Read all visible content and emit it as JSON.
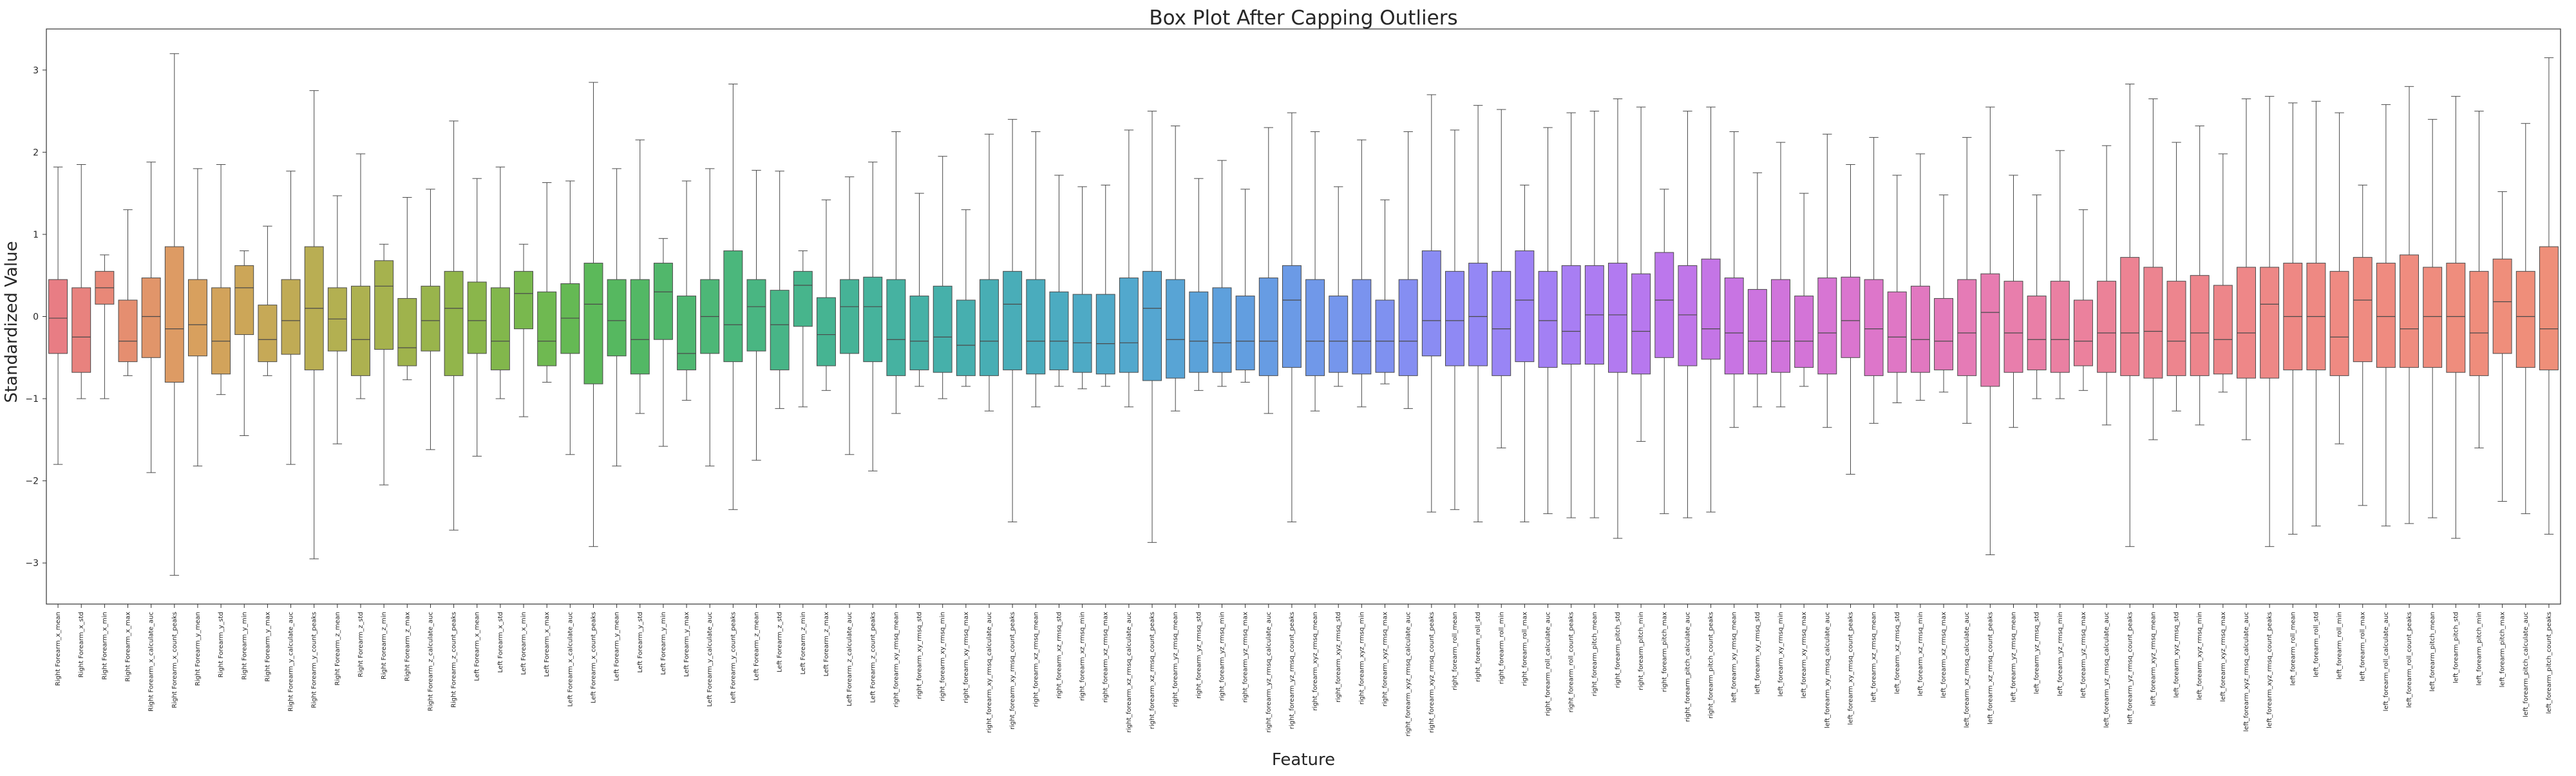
{
  "chart_data": {
    "type": "box",
    "title": "Box Plot After Capping Outliers",
    "xlabel": "Feature",
    "ylabel": "Standardized Value",
    "ylim": [
      -3.5,
      3.5
    ],
    "yticks": [
      -3,
      -2,
      -1,
      0,
      1,
      2,
      3
    ],
    "grid": false,
    "legend": "none",
    "categories": [
      "Right Forearm_x_mean",
      "Right Forearm_x_std",
      "Right Forearm_x_min",
      "Right Forearm_x_max",
      "Right Forearm_x_calculate_auc",
      "Right Forearm_x_count_peaks",
      "Right Forearm_y_mean",
      "Right Forearm_y_std",
      "Right Forearm_y_min",
      "Right Forearm_y_max",
      "Right Forearm_y_calculate_auc",
      "Right Forearm_y_count_peaks",
      "Right Forearm_z_mean",
      "Right Forearm_z_std",
      "Right Forearm_z_min",
      "Right Forearm_z_max",
      "Right Forearm_z_calculate_auc",
      "Right Forearm_z_count_peaks",
      "Left Forearm_x_mean",
      "Left Forearm_x_std",
      "Left Forearm_x_min",
      "Left Forearm_x_max",
      "Left Forearm_x_calculate_auc",
      "Left Forearm_x_count_peaks",
      "Left Forearm_y_mean",
      "Left Forearm_y_std",
      "Left Forearm_y_min",
      "Left Forearm_y_max",
      "Left Forearm_y_calculate_auc",
      "Left Forearm_y_count_peaks",
      "Left Forearm_z_mean",
      "Left Forearm_z_std",
      "Left Forearm_z_min",
      "Left Forearm_z_max",
      "Left Forearm_z_calculate_auc",
      "Left Forearm_z_count_peaks",
      "right_forearm_xy_rmsq_mean",
      "right_forearm_xy_rmsq_std",
      "right_forearm_xy_rmsq_min",
      "right_forearm_xy_rmsq_max",
      "right_forearm_xy_rmsq_calculate_auc",
      "right_forearm_xy_rmsq_count_peaks",
      "right_forearm_xz_rmsq_mean",
      "right_forearm_xz_rmsq_std",
      "right_forearm_xz_rmsq_min",
      "right_forearm_xz_rmsq_max",
      "right_forearm_xz_rmsq_calculate_auc",
      "right_forearm_xz_rmsq_count_peaks",
      "right_forearm_yz_rmsq_mean",
      "right_forearm_yz_rmsq_std",
      "right_forearm_yz_rmsq_min",
      "right_forearm_yz_rmsq_max",
      "right_forearm_yz_rmsq_calculate_auc",
      "right_forearm_yz_rmsq_count_peaks",
      "right_forearm_xyz_rmsq_mean",
      "right_forearm_xyz_rmsq_std",
      "right_forearm_xyz_rmsq_min",
      "right_forearm_xyz_rmsq_max",
      "right_forearm_xyz_rmsq_calculate_auc",
      "right_forearm_xyz_rmsq_count_peaks",
      "right_forearm_roll_mean",
      "right_forearm_roll_std",
      "right_forearm_roll_min",
      "right_forearm_roll_max",
      "right_forearm_roll_calculate_auc",
      "right_forearm_roll_count_peaks",
      "right_forearm_pitch_mean",
      "right_forearm_pitch_std",
      "right_forearm_pitch_min",
      "right_forearm_pitch_max",
      "right_forearm_pitch_calculate_auc",
      "right_forearm_pitch_count_peaks",
      "left_forearm_xy_rmsq_mean",
      "left_forearm_xy_rmsq_std",
      "left_forearm_xy_rmsq_min",
      "left_forearm_xy_rmsq_max",
      "left_forearm_xy_rmsq_calculate_auc",
      "left_forearm_xy_rmsq_count_peaks",
      "left_forearm_xz_rmsq_mean",
      "left_forearm_xz_rmsq_std",
      "left_forearm_xz_rmsq_min",
      "left_forearm_xz_rmsq_max",
      "left_forearm_xz_rmsq_calculate_auc",
      "left_forearm_xz_rmsq_count_peaks",
      "left_forearm_yz_rmsq_mean",
      "left_forearm_yz_rmsq_std",
      "left_forearm_yz_rmsq_min",
      "left_forearm_yz_rmsq_max",
      "left_forearm_yz_rmsq_calculate_auc",
      "left_forearm_yz_rmsq_count_peaks",
      "left_forearm_xyz_rmsq_mean",
      "left_forearm_xyz_rmsq_std",
      "left_forearm_xyz_rmsq_min",
      "left_forearm_xyz_rmsq_max",
      "left_forearm_xyz_rmsq_calculate_auc",
      "left_forearm_xyz_rmsq_count_peaks",
      "left_forearm_roll_mean",
      "left_forearm_roll_std",
      "left_forearm_roll_min",
      "left_forearm_roll_max",
      "left_forearm_roll_calculate_auc",
      "left_forearm_roll_count_peaks",
      "left_forearm_pitch_mean",
      "left_forearm_pitch_std",
      "left_forearm_pitch_min",
      "left_forearm_pitch_max",
      "left_forearm_pitch_calculate_auc",
      "left_forearm_pitch_count_peaks"
    ],
    "boxes": [
      [
        -1.8,
        -0.45,
        -0.02,
        0.45,
        1.82
      ],
      [
        -1.0,
        -0.68,
        -0.25,
        0.35,
        1.85
      ],
      [
        -1.0,
        0.15,
        0.35,
        0.55,
        0.75
      ],
      [
        -0.72,
        -0.55,
        -0.3,
        0.2,
        1.3
      ],
      [
        -1.9,
        -0.5,
        0.0,
        0.47,
        1.88
      ],
      [
        -3.15,
        -0.8,
        -0.15,
        0.85,
        3.2
      ],
      [
        -1.82,
        -0.48,
        -0.1,
        0.45,
        1.8
      ],
      [
        -0.95,
        -0.7,
        -0.3,
        0.35,
        1.85
      ],
      [
        -1.45,
        -0.22,
        0.35,
        0.62,
        0.8
      ],
      [
        -0.72,
        -0.55,
        -0.28,
        0.14,
        1.1
      ],
      [
        -1.8,
        -0.46,
        -0.05,
        0.45,
        1.77
      ],
      [
        -2.95,
        -0.65,
        0.1,
        0.85,
        2.75
      ],
      [
        -1.55,
        -0.42,
        -0.03,
        0.35,
        1.47
      ],
      [
        -1.0,
        -0.72,
        -0.28,
        0.37,
        1.98
      ],
      [
        -2.05,
        -0.4,
        0.37,
        0.68,
        0.88
      ],
      [
        -0.77,
        -0.6,
        -0.38,
        0.22,
        1.45
      ],
      [
        -1.62,
        -0.42,
        -0.05,
        0.37,
        1.55
      ],
      [
        -2.6,
        -0.72,
        0.1,
        0.55,
        2.38
      ],
      [
        -1.7,
        -0.45,
        -0.05,
        0.42,
        1.68
      ],
      [
        -1.0,
        -0.65,
        -0.3,
        0.35,
        1.82
      ],
      [
        -1.22,
        -0.15,
        0.28,
        0.55,
        0.88
      ],
      [
        -0.8,
        -0.6,
        -0.3,
        0.3,
        1.63
      ],
      [
        -1.68,
        -0.45,
        -0.02,
        0.4,
        1.65
      ],
      [
        -2.8,
        -0.82,
        0.15,
        0.65,
        2.85
      ],
      [
        -1.82,
        -0.48,
        -0.05,
        0.45,
        1.8
      ],
      [
        -1.18,
        -0.7,
        -0.28,
        0.45,
        2.15
      ],
      [
        -1.58,
        -0.28,
        0.3,
        0.65,
        0.95
      ],
      [
        -1.02,
        -0.65,
        -0.45,
        0.25,
        1.65
      ],
      [
        -1.82,
        -0.45,
        0.0,
        0.45,
        1.8
      ],
      [
        -2.35,
        -0.55,
        -0.1,
        0.8,
        2.83
      ],
      [
        -1.75,
        -0.42,
        0.12,
        0.45,
        1.78
      ],
      [
        -1.12,
        -0.65,
        -0.1,
        0.32,
        1.77
      ],
      [
        -1.1,
        -0.12,
        0.38,
        0.55,
        0.8
      ],
      [
        -0.9,
        -0.6,
        -0.22,
        0.23,
        1.42
      ],
      [
        -1.68,
        -0.45,
        0.12,
        0.45,
        1.7
      ],
      [
        -1.88,
        -0.55,
        0.12,
        0.48,
        1.88
      ],
      [
        -1.18,
        -0.72,
        -0.28,
        0.45,
        2.25
      ],
      [
        -0.85,
        -0.65,
        -0.3,
        0.25,
        1.5
      ],
      [
        -1.0,
        -0.68,
        -0.25,
        0.37,
        1.95
      ],
      [
        -0.85,
        -0.72,
        -0.35,
        0.2,
        1.3
      ],
      [
        -1.15,
        -0.72,
        -0.3,
        0.45,
        2.22
      ],
      [
        -2.5,
        -0.65,
        0.15,
        0.55,
        2.4
      ],
      [
        -1.1,
        -0.7,
        -0.3,
        0.45,
        2.25
      ],
      [
        -0.85,
        -0.65,
        -0.3,
        0.3,
        1.72
      ],
      [
        -0.88,
        -0.68,
        -0.32,
        0.27,
        1.58
      ],
      [
        -0.85,
        -0.7,
        -0.33,
        0.27,
        1.6
      ],
      [
        -1.1,
        -0.68,
        -0.32,
        0.47,
        2.27
      ],
      [
        -2.75,
        -0.78,
        0.1,
        0.55,
        2.5
      ],
      [
        -1.15,
        -0.75,
        -0.28,
        0.45,
        2.32
      ],
      [
        -0.9,
        -0.68,
        -0.3,
        0.3,
        1.68
      ],
      [
        -0.85,
        -0.68,
        -0.32,
        0.35,
        1.9
      ],
      [
        -0.8,
        -0.65,
        -0.3,
        0.25,
        1.55
      ],
      [
        -1.18,
        -0.72,
        -0.3,
        0.47,
        2.3
      ],
      [
        -2.5,
        -0.62,
        0.2,
        0.62,
        2.48
      ],
      [
        -1.15,
        -0.72,
        -0.3,
        0.45,
        2.25
      ],
      [
        -0.85,
        -0.68,
        -0.3,
        0.25,
        1.58
      ],
      [
        -1.1,
        -0.7,
        -0.3,
        0.45,
        2.15
      ],
      [
        -0.82,
        -0.68,
        -0.3,
        0.2,
        1.42
      ],
      [
        -1.12,
        -0.72,
        -0.3,
        0.45,
        2.25
      ],
      [
        -2.38,
        -0.48,
        -0.05,
        0.8,
        2.7
      ],
      [
        -2.35,
        -0.6,
        -0.05,
        0.55,
        2.27
      ],
      [
        -2.5,
        -0.6,
        0.0,
        0.65,
        2.57
      ],
      [
        -1.6,
        -0.72,
        -0.15,
        0.55,
        2.52
      ],
      [
        -2.5,
        -0.55,
        0.2,
        0.8,
        1.6
      ],
      [
        -2.4,
        -0.62,
        -0.05,
        0.55,
        2.3
      ],
      [
        -2.45,
        -0.58,
        -0.18,
        0.62,
        2.48
      ],
      [
        -2.45,
        -0.58,
        0.02,
        0.62,
        2.5
      ],
      [
        -2.7,
        -0.68,
        0.02,
        0.65,
        2.65
      ],
      [
        -1.52,
        -0.7,
        -0.18,
        0.52,
        2.55
      ],
      [
        -2.4,
        -0.5,
        0.2,
        0.78,
        1.55
      ],
      [
        -2.45,
        -0.6,
        0.02,
        0.62,
        2.5
      ],
      [
        -2.38,
        -0.52,
        -0.15,
        0.7,
        2.55
      ],
      [
        -1.35,
        -0.7,
        -0.2,
        0.47,
        2.25
      ],
      [
        -1.1,
        -0.7,
        -0.3,
        0.33,
        1.75
      ],
      [
        -1.1,
        -0.68,
        -0.3,
        0.45,
        2.12
      ],
      [
        -0.85,
        -0.62,
        -0.3,
        0.25,
        1.5
      ],
      [
        -1.35,
        -0.7,
        -0.2,
        0.47,
        2.22
      ],
      [
        -1.92,
        -0.5,
        -0.05,
        0.48,
        1.85
      ],
      [
        -1.3,
        -0.72,
        -0.15,
        0.45,
        2.18
      ],
      [
        -1.05,
        -0.68,
        -0.25,
        0.3,
        1.72
      ],
      [
        -1.02,
        -0.68,
        -0.28,
        0.37,
        1.98
      ],
      [
        -0.92,
        -0.65,
        -0.3,
        0.22,
        1.48
      ],
      [
        -1.3,
        -0.72,
        -0.2,
        0.45,
        2.18
      ],
      [
        -2.9,
        -0.85,
        0.05,
        0.52,
        2.55
      ],
      [
        -1.35,
        -0.68,
        -0.2,
        0.43,
        1.72
      ],
      [
        -1.0,
        -0.65,
        -0.28,
        0.25,
        1.48
      ],
      [
        -1.0,
        -0.68,
        -0.28,
        0.43,
        2.02
      ],
      [
        -0.9,
        -0.6,
        -0.3,
        0.2,
        1.3
      ],
      [
        -1.32,
        -0.68,
        -0.2,
        0.43,
        2.08
      ],
      [
        -2.8,
        -0.72,
        -0.2,
        0.72,
        2.83
      ],
      [
        -1.5,
        -0.75,
        -0.18,
        0.6,
        2.65
      ],
      [
        -1.15,
        -0.72,
        -0.3,
        0.43,
        2.12
      ],
      [
        -1.32,
        -0.72,
        -0.2,
        0.5,
        2.32
      ],
      [
        -0.92,
        -0.7,
        -0.28,
        0.38,
        1.98
      ],
      [
        -1.5,
        -0.75,
        -0.2,
        0.6,
        2.65
      ],
      [
        -2.8,
        -0.75,
        0.15,
        0.6,
        2.68
      ],
      [
        -2.65,
        -0.65,
        0.0,
        0.65,
        2.6
      ],
      [
        -2.55,
        -0.65,
        0.0,
        0.65,
        2.62
      ],
      [
        -1.55,
        -0.72,
        -0.25,
        0.55,
        2.48
      ],
      [
        -2.3,
        -0.55,
        0.2,
        0.72,
        1.6
      ],
      [
        -2.55,
        -0.62,
        0.0,
        0.65,
        2.58
      ],
      [
        -2.52,
        -0.62,
        -0.15,
        0.75,
        2.8
      ],
      [
        -2.45,
        -0.62,
        0.0,
        0.6,
        2.4
      ],
      [
        -2.7,
        -0.68,
        0.0,
        0.65,
        2.68
      ],
      [
        -1.6,
        -0.72,
        -0.2,
        0.55,
        2.5
      ],
      [
        -2.25,
        -0.45,
        0.18,
        0.7,
        1.52
      ],
      [
        -2.4,
        -0.62,
        0.0,
        0.55,
        2.35
      ],
      [
        -2.65,
        -0.65,
        -0.15,
        0.85,
        3.15
      ]
    ],
    "colors": [
      "#e87d84",
      "#e8827e",
      "#e88878",
      "#e58e70",
      "#e1956a",
      "#dd9b64",
      "#d8a05e",
      "#d2a35b",
      "#cca658",
      "#c6a957",
      "#c0ab55",
      "#b9ae53",
      "#b3b051",
      "#adb150",
      "#a6b24e",
      "#9fb34c",
      "#99b44c",
      "#92b54b",
      "#8ab64b",
      "#82b74c",
      "#79b84e",
      "#6fb951",
      "#65b954",
      "#5cb95a",
      "#56b860",
      "#53b865",
      "#51b76b",
      "#4fb771",
      "#4db777",
      "#4bb77c",
      "#49b682",
      "#48b587",
      "#47b58c",
      "#46b492",
      "#46b397",
      "#46b39c",
      "#46b2a1",
      "#46b1a6",
      "#46b0aa",
      "#47afaf",
      "#48aeb4",
      "#49adb8",
      "#4aacbd",
      "#4cabc1",
      "#4eaac5",
      "#50a9c9",
      "#52a8cd",
      "#55a6d1",
      "#58a4d5",
      "#5ba2d9",
      "#5ea0dc",
      "#629ee0",
      "#679ce3",
      "#6b9ae6",
      "#7098e9",
      "#7596ec",
      "#7a93ee",
      "#7f91f0",
      "#858ef2",
      "#8a8cf3",
      "#8f89f4",
      "#9487f5",
      "#9985f5",
      "#9e82f5",
      "#a380f4",
      "#a87ef3",
      "#ad7cf2",
      "#b27af0",
      "#b778ee",
      "#bc77ec",
      "#c076e9",
      "#c475e6",
      "#c874e3",
      "#cc74df",
      "#d074db",
      "#d374d7",
      "#d775d3",
      "#da75cf",
      "#dd76ca",
      "#df77c5",
      "#e178c0",
      "#e37abb",
      "#e57bb6",
      "#e77cb1",
      "#e87eac",
      "#e97fa7",
      "#ea80a2",
      "#eb819d",
      "#eb8298",
      "#ec8393",
      "#ec8490",
      "#ed858e",
      "#ed858c",
      "#ed868a",
      "#ee8788",
      "#ee8886",
      "#ee8884",
      "#ee8983",
      "#ef8a82",
      "#ef8b81",
      "#ef8b80",
      "#ef8c7f",
      "#ef8c7e",
      "#ef8d7d",
      "#ef8d7c",
      "#ef8e7b",
      "#ef8e7a",
      "#ef8f79"
    ]
  }
}
